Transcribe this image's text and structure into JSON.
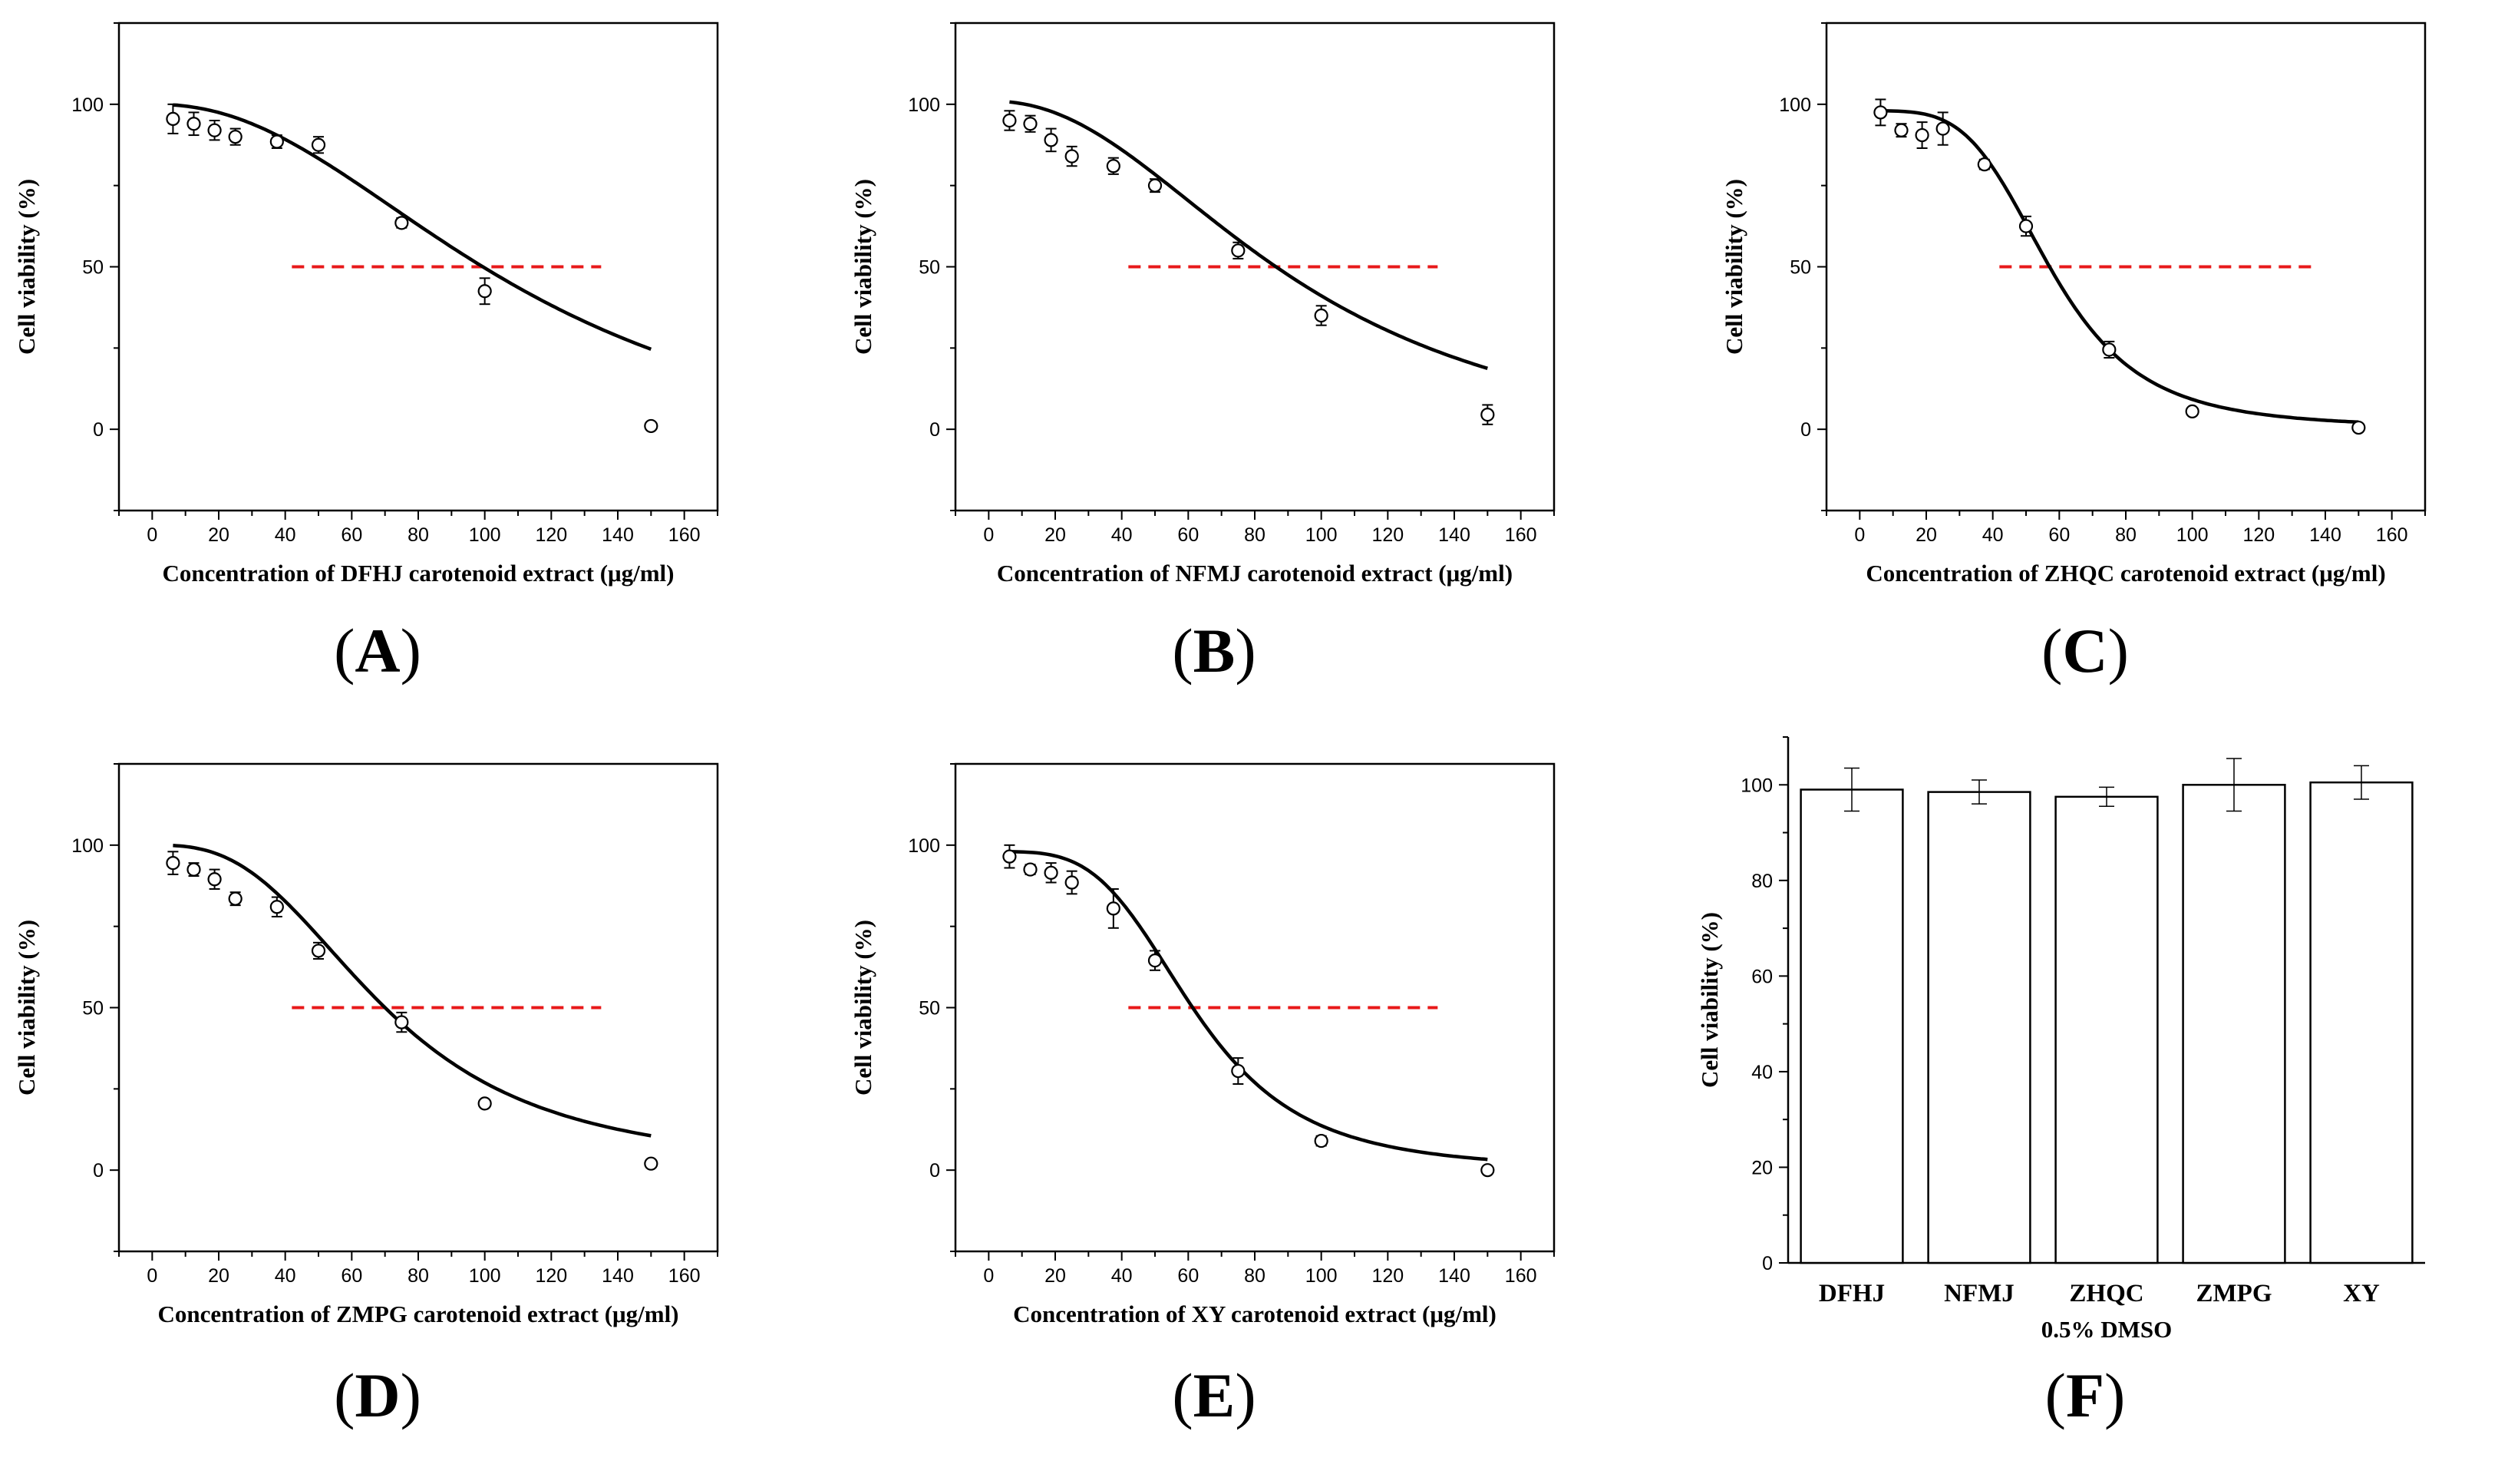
{
  "figure": {
    "colors": {
      "curve": "#000000",
      "ic50_line": "#e8191a",
      "bar_fill": "#ffffff",
      "axis": "#000000"
    }
  },
  "chart_data": [
    {
      "id": "A",
      "type": "scatter",
      "label": "A",
      "xlabel": "Concentration of DFHJ carotenoid extract (μg/ml)",
      "ylabel": "Cell viability (%)",
      "xlim": [
        -10,
        170
      ],
      "ylim": [
        -25,
        125
      ],
      "xticks": [
        0,
        20,
        40,
        60,
        80,
        100,
        120,
        140,
        160
      ],
      "yticks": [
        0,
        50,
        100
      ],
      "points": [
        {
          "x": 6.25,
          "y": 95.5,
          "err": 4.5
        },
        {
          "x": 12.5,
          "y": 94,
          "err": 3.5
        },
        {
          "x": 18.75,
          "y": 92,
          "err": 3
        },
        {
          "x": 25,
          "y": 90,
          "err": 2.5
        },
        {
          "x": 37.5,
          "y": 88.5,
          "err": 2
        },
        {
          "x": 50,
          "y": 87.5,
          "err": 2.5
        },
        {
          "x": 75,
          "y": 63.5,
          "err": 1.5
        },
        {
          "x": 100,
          "y": 42.5,
          "err": 4
        },
        {
          "x": 150,
          "y": 1,
          "err": 1
        }
      ],
      "fit": {
        "top": 100,
        "bottom": -15,
        "ic50": 112,
        "hill": 2.2
      },
      "ic50_line": {
        "y": 50,
        "x_start": 42,
        "x_end": 135
      },
      "error_bars": "±SD"
    },
    {
      "id": "B",
      "type": "scatter",
      "label": "B",
      "xlabel": "Concentration of NFMJ carotenoid extract (μg/ml)",
      "ylabel": "Cell viability (%)",
      "xlim": [
        -10,
        170
      ],
      "ylim": [
        -25,
        125
      ],
      "xticks": [
        0,
        20,
        40,
        60,
        80,
        100,
        120,
        140,
        160
      ],
      "yticks": [
        0,
        50,
        100
      ],
      "points": [
        {
          "x": 6.25,
          "y": 95,
          "err": 3
        },
        {
          "x": 12.5,
          "y": 94,
          "err": 2.5
        },
        {
          "x": 18.75,
          "y": 89,
          "err": 3.5
        },
        {
          "x": 25,
          "y": 84,
          "err": 3
        },
        {
          "x": 37.5,
          "y": 81,
          "err": 2.5
        },
        {
          "x": 50,
          "y": 75,
          "err": 2
        },
        {
          "x": 75,
          "y": 55,
          "err": 2.5
        },
        {
          "x": 100,
          "y": 35,
          "err": 3
        },
        {
          "x": 150,
          "y": 4.5,
          "err": 3
        }
      ],
      "fit": {
        "top": 101,
        "bottom": -10,
        "ic50": 93,
        "hill": 2.2
      },
      "ic50_line": {
        "y": 50,
        "x_start": 42,
        "x_end": 135
      },
      "error_bars": "±SD"
    },
    {
      "id": "C",
      "type": "scatter",
      "label": "C",
      "xlabel": "Concentration of ZHQC carotenoid extract (μg/ml)",
      "ylabel": "Cell viability (%)",
      "xlim": [
        -10,
        170
      ],
      "ylim": [
        -25,
        125
      ],
      "xticks": [
        0,
        20,
        40,
        60,
        80,
        100,
        120,
        140,
        160
      ],
      "yticks": [
        0,
        50,
        100
      ],
      "points": [
        {
          "x": 6.25,
          "y": 97.5,
          "err": 4
        },
        {
          "x": 12.5,
          "y": 92,
          "err": 2
        },
        {
          "x": 18.75,
          "y": 90.5,
          "err": 4
        },
        {
          "x": 25,
          "y": 92.5,
          "err": 5
        },
        {
          "x": 37.5,
          "y": 81.5,
          "err": 1.5
        },
        {
          "x": 50,
          "y": 62.5,
          "err": 3
        },
        {
          "x": 75,
          "y": 24.5,
          "err": 2.5
        },
        {
          "x": 100,
          "y": 5.5,
          "err": 1
        },
        {
          "x": 150,
          "y": 0.5,
          "err": 1
        }
      ],
      "fit": {
        "top": 98,
        "bottom": 0.5,
        "ic50": 57.5,
        "hill": 4.2
      },
      "ic50_line": {
        "y": 50,
        "x_start": 42,
        "x_end": 137
      },
      "error_bars": "±SD"
    },
    {
      "id": "D",
      "type": "scatter",
      "label": "D",
      "xlabel": "Concentration of ZMPG carotenoid extract  (μg/ml)",
      "ylabel": "Cell viability (%)",
      "xlim": [
        -10,
        170
      ],
      "ylim": [
        -25,
        125
      ],
      "xticks": [
        0,
        20,
        40,
        60,
        80,
        100,
        120,
        140,
        160
      ],
      "yticks": [
        0,
        50,
        100
      ],
      "points": [
        {
          "x": 6.25,
          "y": 94.5,
          "err": 3.5
        },
        {
          "x": 12.5,
          "y": 92.5,
          "err": 2
        },
        {
          "x": 18.75,
          "y": 89.5,
          "err": 3
        },
        {
          "x": 25,
          "y": 83.5,
          "err": 2
        },
        {
          "x": 37.5,
          "y": 81,
          "err": 3
        },
        {
          "x": 50,
          "y": 67.5,
          "err": 2.5
        },
        {
          "x": 75,
          "y": 45.5,
          "err": 3
        },
        {
          "x": 100,
          "y": 20.5,
          "err": 1
        },
        {
          "x": 150,
          "y": 2,
          "err": 1
        }
      ],
      "fit": {
        "top": 100,
        "bottom": 0,
        "ic50": 70,
        "hill": 2.8
      },
      "ic50_line": {
        "y": 50,
        "x_start": 42,
        "x_end": 135
      },
      "error_bars": "±SD"
    },
    {
      "id": "E",
      "type": "scatter",
      "label": "E",
      "xlabel": "Concentration of XY carotenoid extract (μg/ml)",
      "ylabel": "Cell viability (%)",
      "xlim": [
        -10,
        170
      ],
      "ylim": [
        -25,
        125
      ],
      "xticks": [
        0,
        20,
        40,
        60,
        80,
        100,
        120,
        140,
        160
      ],
      "yticks": [
        0,
        50,
        100
      ],
      "points": [
        {
          "x": 6.25,
          "y": 96.5,
          "err": 3.5
        },
        {
          "x": 12.5,
          "y": 92.5,
          "err": 1.5
        },
        {
          "x": 18.75,
          "y": 91.5,
          "err": 3
        },
        {
          "x": 25,
          "y": 88.5,
          "err": 3.5
        },
        {
          "x": 37.5,
          "y": 80.5,
          "err": 6
        },
        {
          "x": 50,
          "y": 64.5,
          "err": 3
        },
        {
          "x": 75,
          "y": 30.5,
          "err": 4
        },
        {
          "x": 100,
          "y": 9,
          "err": 1.5
        },
        {
          "x": 150,
          "y": 0,
          "err": 1
        }
      ],
      "fit": {
        "top": 98,
        "bottom": 0,
        "ic50": 62,
        "hill": 3.8
      },
      "ic50_line": {
        "y": 50,
        "x_start": 42,
        "x_end": 135
      },
      "error_bars": "±SD"
    },
    {
      "id": "F",
      "type": "bar",
      "label": "F",
      "xlabel": "0.5% DMSO",
      "ylabel": "Cell viability (%)",
      "ylim": [
        0,
        110
      ],
      "yticks": [
        0,
        20,
        40,
        60,
        80,
        100
      ],
      "categories": [
        "DFHJ",
        "NFMJ",
        "ZHQC",
        "ZMPG",
        "XY"
      ],
      "values": [
        99,
        98.5,
        97.5,
        100,
        100.5
      ],
      "errors": [
        4.5,
        2.5,
        2,
        5.5,
        3.5
      ]
    }
  ]
}
